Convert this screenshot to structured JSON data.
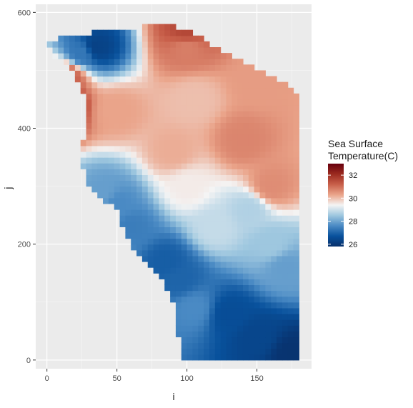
{
  "chart_data": {
    "type": "heatmap",
    "xlabel": "i",
    "ylabel": "j",
    "x_ticks": [
      0,
      50,
      100,
      150
    ],
    "y_ticks": [
      0,
      200,
      400,
      600
    ],
    "xlim": [
      -8,
      189
    ],
    "ylim": [
      -15,
      614
    ],
    "grid": true,
    "colorbar": {
      "title_lines": [
        "Sea Surface",
        "Temperature(C)"
      ],
      "ticks": [
        26,
        28,
        30,
        32
      ],
      "range": [
        25.8,
        33.0
      ],
      "colors_low_to_high": [
        "#08306b",
        "#08519c",
        "#4a8ac4",
        "#9ec7df",
        "#f4f4f4",
        "#eaa48a",
        "#c85f4a",
        "#9b2a1f",
        "#67000d"
      ]
    },
    "field": {
      "grid_resolution": {
        "i_step": 4,
        "j_step": 10
      },
      "domain_left_edge": {
        "j": [
          0,
          20,
          60,
          100,
          150,
          200,
          220,
          260,
          300,
          330,
          360,
          400,
          440,
          480,
          510,
          530,
          545,
          560,
          570,
          574
        ],
        "i": [
          98,
          97,
          92,
          90,
          80,
          60,
          55,
          50,
          28,
          26,
          24,
          28,
          30,
          22,
          15,
          3,
          2,
          12,
          50,
          70
        ]
      },
      "domain_right_edge": {
        "j": [
          0,
          450,
          460,
          480,
          500,
          520,
          540,
          560,
          570,
          574
        ],
        "i": [
          181,
          181,
          180,
          170,
          150,
          135,
          120,
          110,
          100,
          92
        ]
      },
      "temperature_anchors": [
        {
          "i": 175,
          "j": 10,
          "t": 25.9
        },
        {
          "i": 150,
          "j": 40,
          "t": 26.4
        },
        {
          "i": 130,
          "j": 80,
          "t": 26.6
        },
        {
          "i": 95,
          "j": 140,
          "t": 27.0
        },
        {
          "i": 85,
          "j": 170,
          "t": 26.9
        },
        {
          "i": 60,
          "j": 230,
          "t": 27.4
        },
        {
          "i": 40,
          "j": 290,
          "t": 27.9
        },
        {
          "i": 50,
          "j": 270,
          "t": 27.6
        },
        {
          "i": 160,
          "j": 200,
          "t": 28.5
        },
        {
          "i": 120,
          "j": 230,
          "t": 28.9
        },
        {
          "i": 145,
          "j": 260,
          "t": 28.7
        },
        {
          "i": 100,
          "j": 300,
          "t": 29.5
        },
        {
          "i": 160,
          "j": 300,
          "t": 30.6
        },
        {
          "i": 140,
          "j": 380,
          "t": 30.7
        },
        {
          "i": 90,
          "j": 360,
          "t": 30.2
        },
        {
          "i": 105,
          "j": 450,
          "t": 30.0
        },
        {
          "i": 50,
          "j": 430,
          "t": 30.3
        },
        {
          "i": 150,
          "j": 480,
          "t": 30.4
        },
        {
          "i": 100,
          "j": 540,
          "t": 30.8
        },
        {
          "i": 100,
          "j": 568,
          "t": 31.6
        },
        {
          "i": 35,
          "j": 540,
          "t": 26.3
        },
        {
          "i": 25,
          "j": 530,
          "t": 27.3
        },
        {
          "i": 10,
          "j": 440,
          "t": 32.5
        },
        {
          "i": 15,
          "j": 490,
          "t": 31.2
        },
        {
          "i": 30,
          "j": 230,
          "t": 30.8
        },
        {
          "i": 105,
          "j": 90,
          "t": 27.6
        },
        {
          "i": 170,
          "j": 160,
          "t": 27.9
        }
      ]
    }
  }
}
